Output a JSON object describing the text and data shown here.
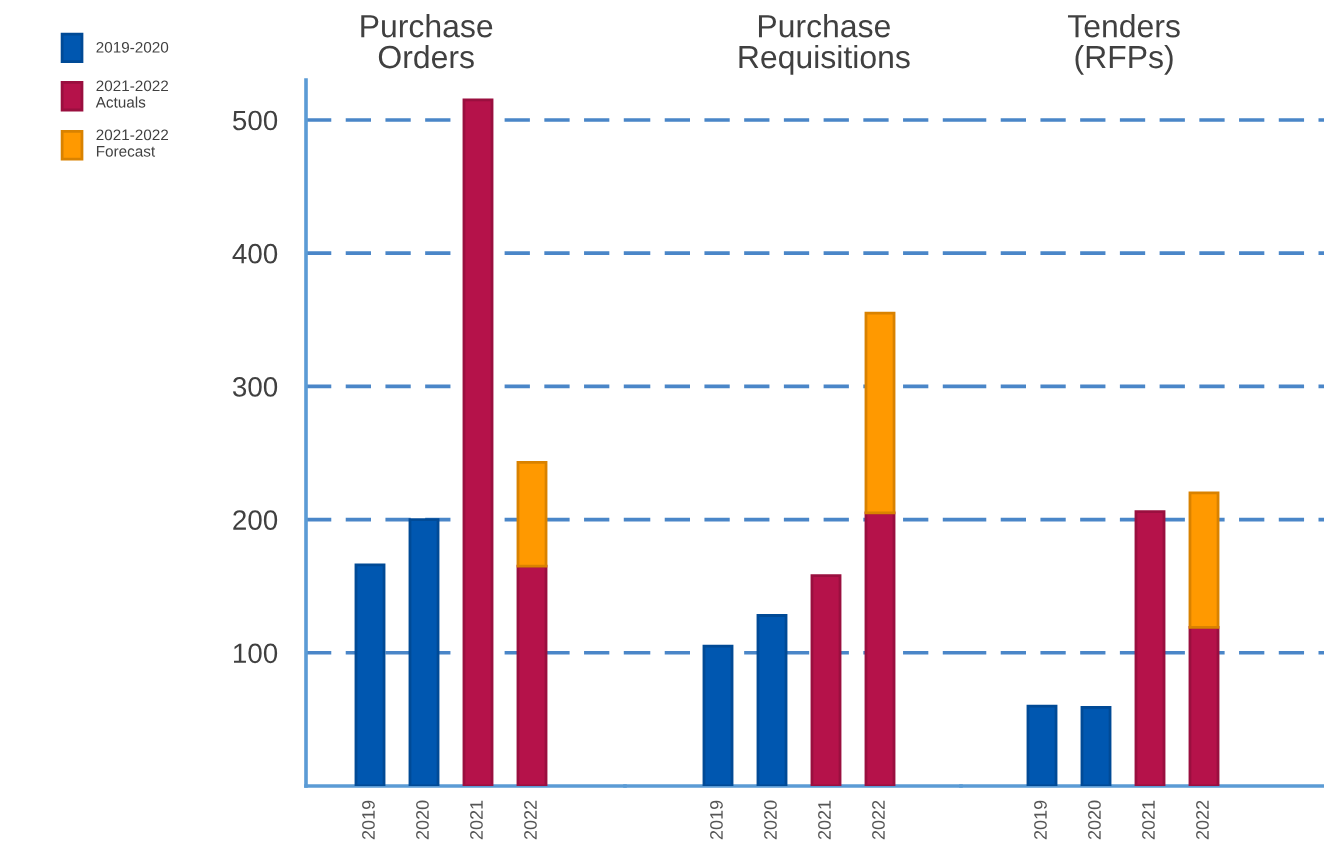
{
  "chart_data": [
    {
      "type": "bar",
      "title": "Purchase\nOrders",
      "categories": [
        "2019",
        "2020",
        "2021",
        "2022"
      ],
      "stacked": true,
      "ylim": [
        0,
        530
      ],
      "yticks": [
        100,
        200,
        300,
        400,
        500
      ],
      "grid": "y",
      "legend": "top left",
      "series": [
        {
          "name": "2019-2020",
          "color": "#0057b0",
          "values": [
            166,
            200,
            null,
            null
          ]
        },
        {
          "name": "2021-2022\nActuals",
          "color": "#b5124a",
          "values": [
            null,
            null,
            515,
            165
          ]
        },
        {
          "name": "2021-2022\nForecast",
          "color": "#ff9900",
          "values": [
            null,
            null,
            null,
            78
          ]
        }
      ]
    },
    {
      "type": "bar",
      "title": "Purchase\nRequisitions",
      "categories": [
        "2019",
        "2020",
        "2021",
        "2022"
      ],
      "stacked": true,
      "ylim": [
        0,
        500
      ],
      "yticks": [
        100,
        200,
        300,
        400,
        500
      ],
      "grid": "y",
      "tick_labels": "x",
      "series": [
        {
          "color": "#0057b0",
          "values": [
            105,
            128,
            null,
            null
          ]
        },
        {
          "color": "#b5124a",
          "values": [
            null,
            null,
            158,
            205
          ]
        },
        {
          "color": "#ff9900",
          "values": [
            null,
            null,
            null,
            150
          ]
        }
      ]
    },
    {
      "type": "bar",
      "title": "Tenders\n(RFPs)",
      "categories": [
        "2019",
        "2020",
        "2021",
        "2022"
      ],
      "stacked": true,
      "ylim": [
        0,
        500
      ],
      "yticks": [
        100,
        200,
        300,
        400,
        500
      ],
      "grid": "y",
      "tick_labels": "x",
      "series": [
        {
          "color": "#0057b0",
          "values": [
            60,
            59,
            null,
            null
          ]
        },
        {
          "color": "#b5124a",
          "values": [
            null,
            null,
            206,
            119
          ]
        },
        {
          "color": "#ff9900",
          "values": [
            null,
            null,
            null,
            101
          ]
        }
      ]
    }
  ]
}
